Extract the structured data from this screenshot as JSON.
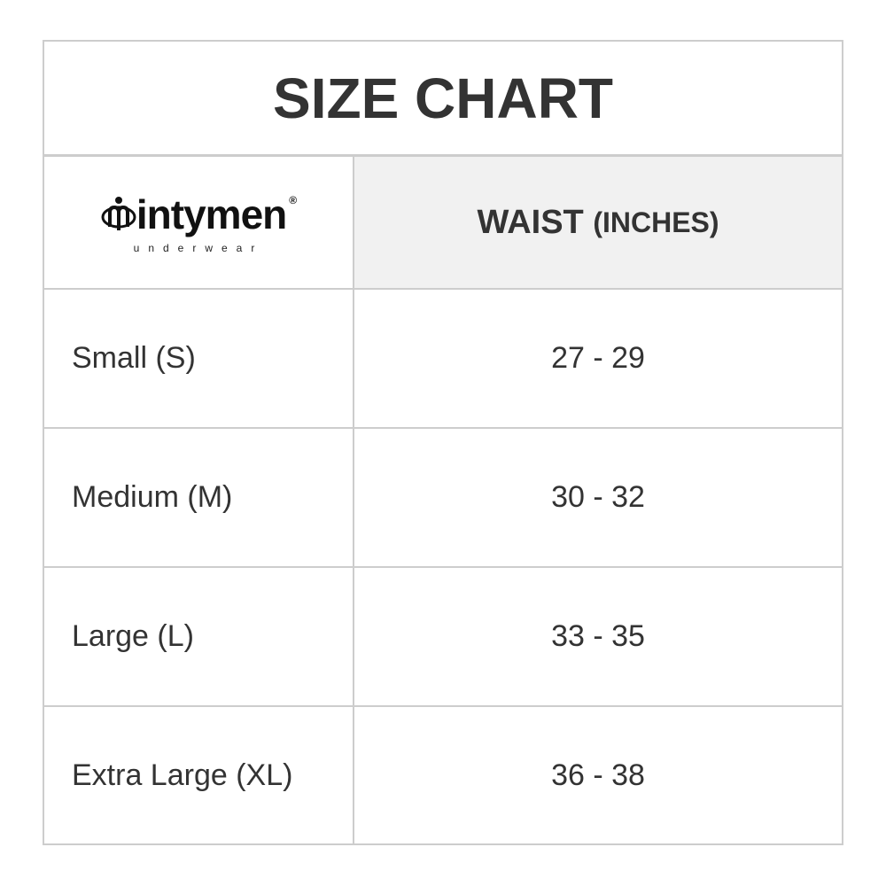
{
  "title": "SIZE CHART",
  "header": {
    "logo": {
      "brand": "intymen",
      "tagline": "underwear",
      "registered": "®"
    },
    "column_label": "WAIST",
    "column_unit": "(INCHES)"
  },
  "rows": [
    {
      "size": "Small (S)",
      "waist": "27 - 29"
    },
    {
      "size": "Medium (M)",
      "waist": "30 - 32"
    },
    {
      "size": "Large (L)",
      "waist": "33 - 35"
    },
    {
      "size": "Extra Large (XL)",
      "waist": "36 - 38"
    }
  ]
}
